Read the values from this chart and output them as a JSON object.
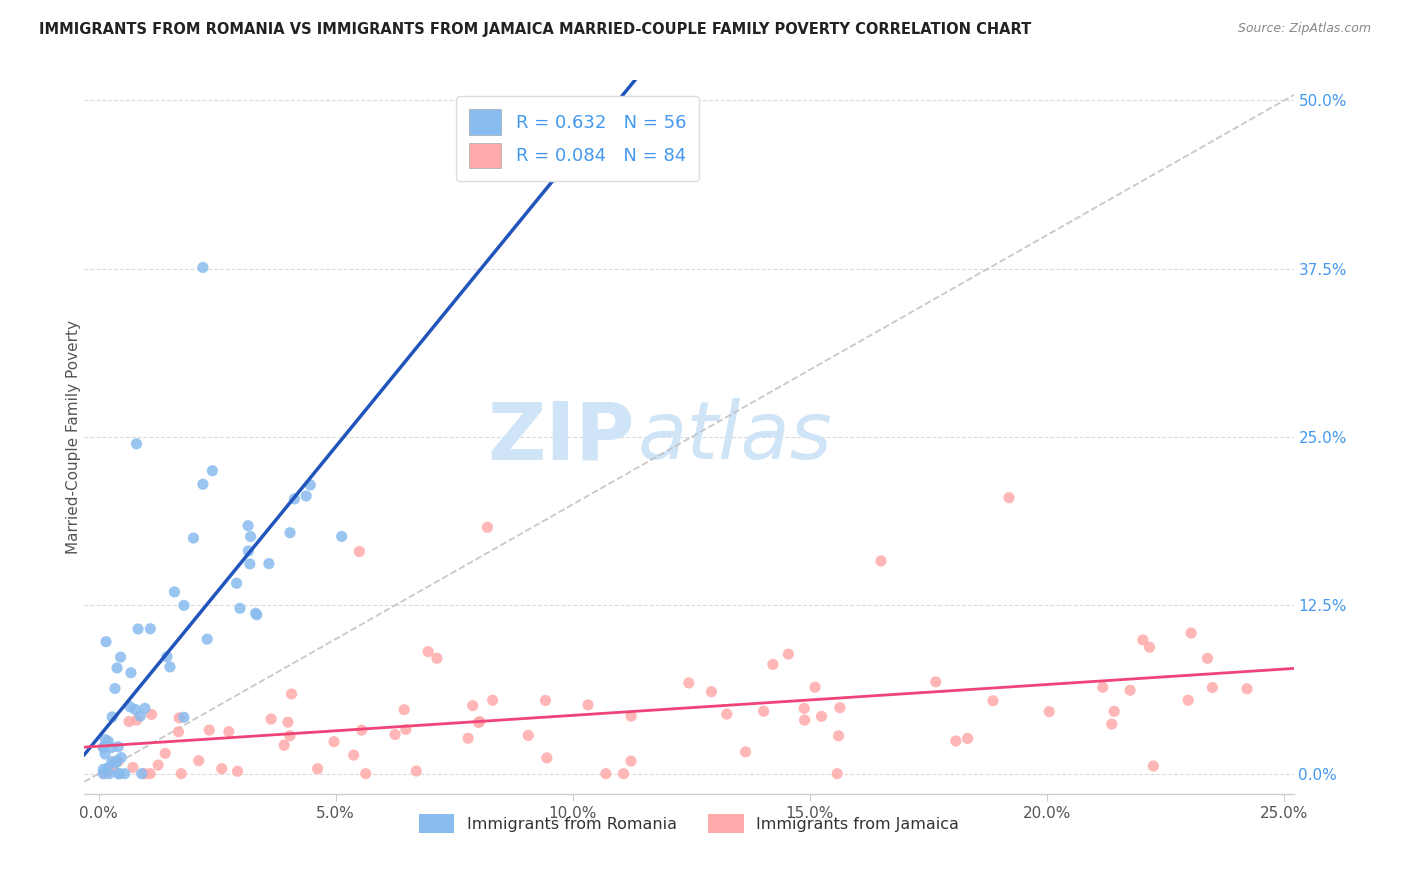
{
  "title": "IMMIGRANTS FROM ROMANIA VS IMMIGRANTS FROM JAMAICA MARRIED-COUPLE FAMILY POVERTY CORRELATION CHART",
  "source": "Source: ZipAtlas.com",
  "ylabel": "Married-Couple Family Poverty",
  "legend_romania": "Immigrants from Romania",
  "legend_jamaica": "Immigrants from Jamaica",
  "R_romania": 0.632,
  "N_romania": 56,
  "R_jamaica": 0.084,
  "N_jamaica": 84,
  "xlim": [
    -0.003,
    0.252
  ],
  "ylim": [
    -0.015,
    0.515
  ],
  "xticks": [
    0.0,
    0.05,
    0.1,
    0.15,
    0.2,
    0.25
  ],
  "yticks": [
    0.0,
    0.125,
    0.25,
    0.375,
    0.5
  ],
  "color_romania": "#88BBEE",
  "color_jamaica": "#FFAAAA",
  "color_trend_romania": "#2255BB",
  "color_trend_jamaica": "#EE4477",
  "watermark_color": "#D0E4F7",
  "background_color": "#FFFFFF",
  "grid_color": "#CCCCCC",
  "axis_label_color": "#555555",
  "title_color": "#222222",
  "source_color": "#888888",
  "right_tick_color": "#4499EE",
  "bottom_tick_color": "#555555"
}
